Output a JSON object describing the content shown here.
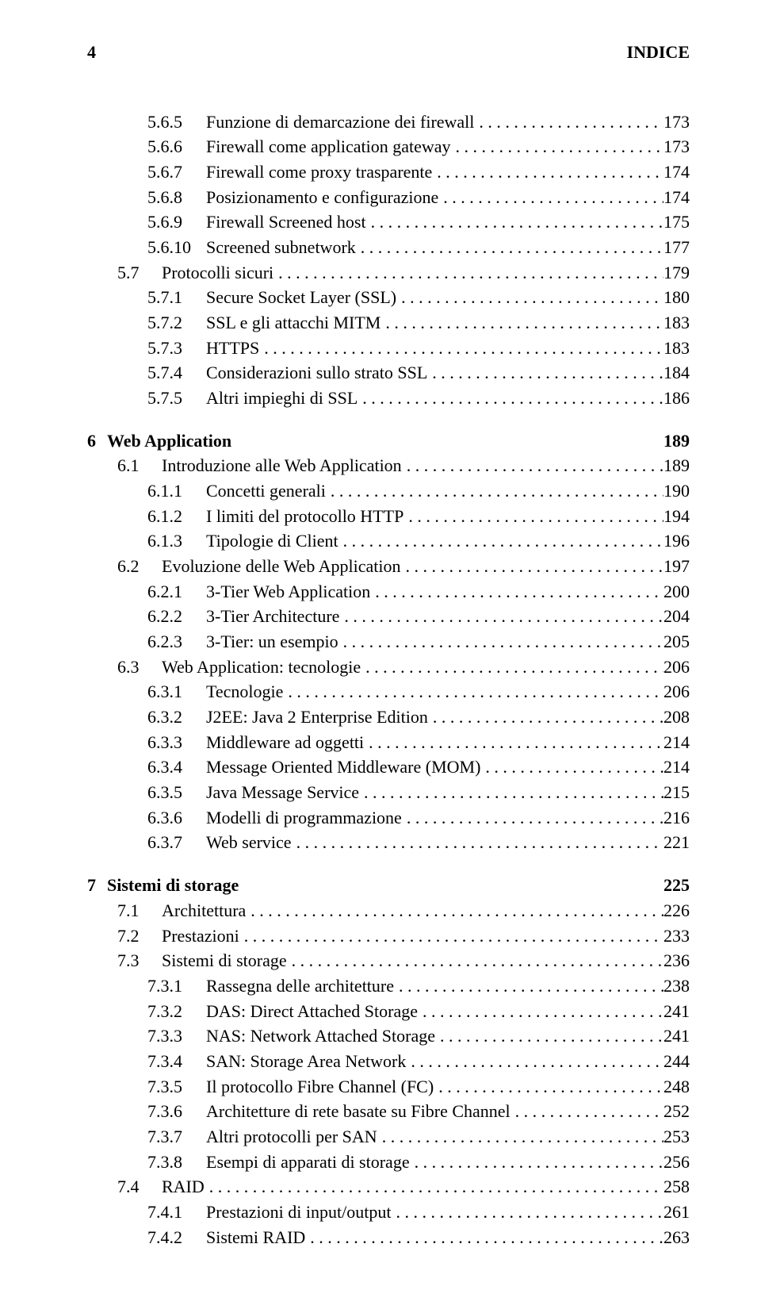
{
  "header": {
    "page_number": "4",
    "running_title": "INDICE"
  },
  "font": {
    "family": "Times New Roman, serif",
    "body_size_pt": 16,
    "chapter_weight": "bold"
  },
  "colors": {
    "text": "#000000",
    "background": "#ffffff"
  },
  "toc": [
    {
      "level": "sub",
      "num": "5.6.5",
      "title": "Funzione di demarcazione dei firewall",
      "page": "173"
    },
    {
      "level": "sub",
      "num": "5.6.6",
      "title": "Firewall come application gateway",
      "page": "173"
    },
    {
      "level": "sub",
      "num": "5.6.7",
      "title": "Firewall come proxy trasparente",
      "page": "174"
    },
    {
      "level": "sub",
      "num": "5.6.8",
      "title": "Posizionamento e configurazione",
      "page": "174"
    },
    {
      "level": "sub",
      "num": "5.6.9",
      "title": "Firewall Screened host",
      "page": "175"
    },
    {
      "level": "sub",
      "num": "5.6.10",
      "title": "Screened subnetwork",
      "page": "177"
    },
    {
      "level": "sec",
      "num": "5.7",
      "title": "Protocolli sicuri",
      "page": "179"
    },
    {
      "level": "sub",
      "num": "5.7.1",
      "title": "Secure Socket Layer (SSL)",
      "page": "180"
    },
    {
      "level": "sub",
      "num": "5.7.2",
      "title": "SSL e gli attacchi MITM",
      "page": "183"
    },
    {
      "level": "sub",
      "num": "5.7.3",
      "title": "HTTPS",
      "page": "183"
    },
    {
      "level": "sub",
      "num": "5.7.4",
      "title": "Considerazioni sullo strato SSL",
      "page": "184"
    },
    {
      "level": "sub",
      "num": "5.7.5",
      "title": "Altri impieghi di SSL",
      "page": "186"
    },
    {
      "level": "chapter",
      "num": "6",
      "title": "Web Application",
      "page": "189"
    },
    {
      "level": "sec",
      "num": "6.1",
      "title": "Introduzione alle Web Application",
      "page": "189"
    },
    {
      "level": "sub",
      "num": "6.1.1",
      "title": "Concetti generali",
      "page": "190"
    },
    {
      "level": "sub",
      "num": "6.1.2",
      "title": "I limiti del protocollo HTTP",
      "page": "194"
    },
    {
      "level": "sub",
      "num": "6.1.3",
      "title": "Tipologie di Client",
      "page": "196"
    },
    {
      "level": "sec",
      "num": "6.2",
      "title": "Evoluzione delle Web Application",
      "page": "197"
    },
    {
      "level": "sub",
      "num": "6.2.1",
      "title": "3-Tier Web Application",
      "page": "200"
    },
    {
      "level": "sub",
      "num": "6.2.2",
      "title": "3-Tier Architecture",
      "page": "204"
    },
    {
      "level": "sub",
      "num": "6.2.3",
      "title": "3-Tier: un esempio",
      "page": "205"
    },
    {
      "level": "sec",
      "num": "6.3",
      "title": "Web Application: tecnologie",
      "page": "206"
    },
    {
      "level": "sub",
      "num": "6.3.1",
      "title": "Tecnologie",
      "page": "206"
    },
    {
      "level": "sub",
      "num": "6.3.2",
      "title": "J2EE: Java 2 Enterprise Edition",
      "page": "208"
    },
    {
      "level": "sub",
      "num": "6.3.3",
      "title": "Middleware ad oggetti",
      "page": "214"
    },
    {
      "level": "sub",
      "num": "6.3.4",
      "title": "Message Oriented Middleware (MOM)",
      "page": "214"
    },
    {
      "level": "sub",
      "num": "6.3.5",
      "title": "Java Message Service",
      "page": "215"
    },
    {
      "level": "sub",
      "num": "6.3.6",
      "title": "Modelli di programmazione",
      "page": "216"
    },
    {
      "level": "sub",
      "num": "6.3.7",
      "title": "Web service",
      "page": "221"
    },
    {
      "level": "chapter",
      "num": "7",
      "title": "Sistemi di storage",
      "page": "225"
    },
    {
      "level": "sec",
      "num": "7.1",
      "title": "Architettura",
      "page": "226"
    },
    {
      "level": "sec",
      "num": "7.2",
      "title": "Prestazioni",
      "page": "233"
    },
    {
      "level": "sec",
      "num": "7.3",
      "title": "Sistemi di storage",
      "page": "236"
    },
    {
      "level": "sub",
      "num": "7.3.1",
      "title": "Rassegna delle architetture",
      "page": "238"
    },
    {
      "level": "sub",
      "num": "7.3.2",
      "title": "DAS: Direct Attached Storage",
      "page": "241"
    },
    {
      "level": "sub",
      "num": "7.3.3",
      "title": "NAS: Network Attached Storage",
      "page": "241"
    },
    {
      "level": "sub",
      "num": "7.3.4",
      "title": "SAN: Storage Area Network",
      "page": "244"
    },
    {
      "level": "sub",
      "num": "7.3.5",
      "title": "Il protocollo Fibre Channel (FC)",
      "page": "248"
    },
    {
      "level": "sub",
      "num": "7.3.6",
      "title": "Architetture di rete basate su Fibre Channel",
      "page": "252"
    },
    {
      "level": "sub",
      "num": "7.3.7",
      "title": "Altri protocolli per SAN",
      "page": "253"
    },
    {
      "level": "sub",
      "num": "7.3.8",
      "title": "Esempi di apparati di storage",
      "page": "256"
    },
    {
      "level": "sec",
      "num": "7.4",
      "title": "RAID",
      "page": "258"
    },
    {
      "level": "sub",
      "num": "7.4.1",
      "title": "Prestazioni di input/output",
      "page": "261"
    },
    {
      "level": "sub",
      "num": "7.4.2",
      "title": "Sistemi RAID",
      "page": "263"
    }
  ]
}
